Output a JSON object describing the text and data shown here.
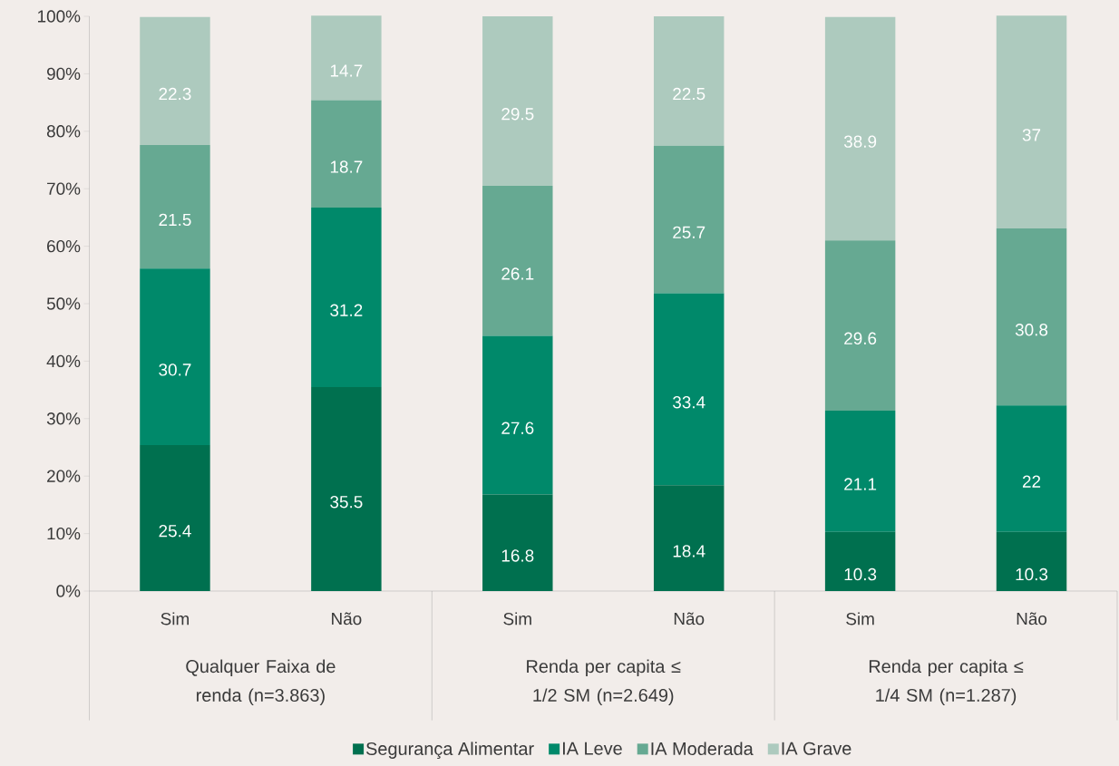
{
  "chart_data": {
    "type": "bar",
    "stacked": true,
    "categories": [
      "Sim",
      "Não",
      "Sim",
      "Não",
      "Sim",
      "Não"
    ],
    "series": [
      {
        "name": "Segurança Alimentar",
        "color": "#00704f",
        "values": [
          25.4,
          35.5,
          16.8,
          18.4,
          10.3,
          10.3
        ]
      },
      {
        "name": "IA Leve",
        "color": "#00896a",
        "values": [
          30.7,
          31.2,
          27.6,
          33.4,
          21.1,
          22
        ]
      },
      {
        "name": "IA Moderada",
        "color": "#66a992",
        "values": [
          21.5,
          18.7,
          26.1,
          25.7,
          29.6,
          30.8
        ]
      },
      {
        "name": "IA Grave",
        "color": "#adcabe",
        "values": [
          22.3,
          14.7,
          29.5,
          22.5,
          38.9,
          37
        ]
      }
    ],
    "ylim": [
      0,
      100
    ],
    "yticks": [
      {
        "value": 0,
        "label": "0%"
      },
      {
        "value": 10,
        "label": "10%"
      },
      {
        "value": 20,
        "label": "20%"
      },
      {
        "value": 30,
        "label": "30%"
      },
      {
        "value": 40,
        "label": "40%"
      },
      {
        "value": 50,
        "label": "50%"
      },
      {
        "value": 60,
        "label": "60%"
      },
      {
        "value": 70,
        "label": "70%"
      },
      {
        "value": 80,
        "label": "80%"
      },
      {
        "value": 90,
        "label": "90%"
      },
      {
        "value": 100,
        "label": "100%"
      }
    ],
    "data_labels": true,
    "legend": "bottom",
    "annotations": [
      "Qualquer Faixa de renda (n=3.863)",
      "Renda per capita ≤ 1/2 SM (n=2.649)",
      "Renda per capita ≤ 1/4 SM (n=1.287)"
    ]
  }
}
